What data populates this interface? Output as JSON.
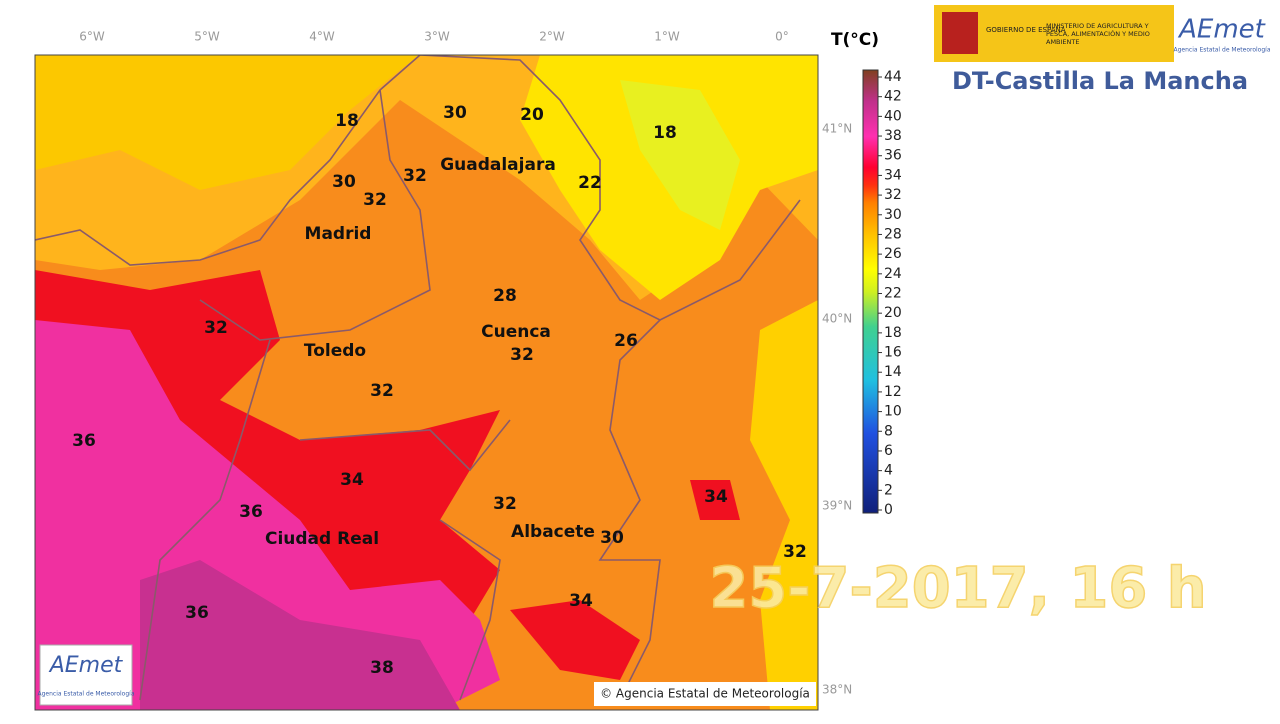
{
  "map": {
    "longitudes": [
      "6°W",
      "5°W",
      "4°W",
      "3°W",
      "2°W",
      "1°W",
      "0°"
    ],
    "latitudes": [
      "41°N",
      "40°N",
      "39°N",
      "38°N"
    ],
    "cities": [
      "Guadalajara",
      "Madrid",
      "Toledo",
      "Cuenca",
      "Ciudad Real",
      "Albacete"
    ],
    "temperatures": [
      18,
      30,
      20,
      18,
      30,
      32,
      32,
      22,
      28,
      32,
      32,
      26,
      32,
      36,
      34,
      34,
      32,
      36,
      30,
      32,
      34,
      36,
      38
    ],
    "copyright": "© Agencia Estatal de Meteorología",
    "logo": {
      "name": "AEmet",
      "subtitle": "Agencia Estatal de Meteorología"
    }
  },
  "colorbar": {
    "title": "T(°C)",
    "ticks": [
      44,
      42,
      40,
      38,
      36,
      34,
      32,
      30,
      28,
      26,
      24,
      22,
      20,
      18,
      16,
      14,
      12,
      10,
      8,
      6,
      4,
      2,
      0
    ]
  },
  "header": {
    "government": "GOBIERNO DE ESPAÑA",
    "ministry": "MINISTERIO DE AGRICULTURA Y PESCA, ALIMENTACIÓN Y MEDIO AMBIENTE",
    "agency": "AEmet",
    "agency_subtitle": "Agencia Estatal de Meteorología",
    "region": "DT-Castilla La Mancha"
  },
  "timestamp": "25-7-2017, 16 h"
}
